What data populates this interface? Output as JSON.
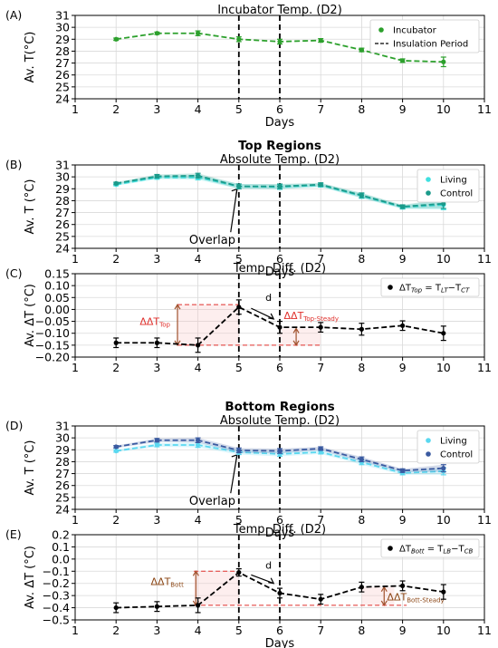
{
  "chart_data": [
    {
      "type": "line",
      "panel_label": "(A)",
      "title": "Incubator Temp. (D2)",
      "ylabel": "Av. T(°C)",
      "xlabel": "Days",
      "xlim": [
        1,
        11
      ],
      "ylim": [
        24,
        31
      ],
      "xticks": [
        1,
        2,
        3,
        4,
        5,
        6,
        7,
        8,
        9,
        10,
        11
      ],
      "yticks": [
        24,
        25,
        26,
        27,
        28,
        29,
        30,
        31
      ],
      "grid": true,
      "legend_position": "top-right",
      "vlines": [
        5,
        6
      ],
      "vline_label": "Insulation Period",
      "x": [
        2,
        3,
        4,
        5,
        6,
        7,
        8,
        9,
        10
      ],
      "series": [
        {
          "name": "Incubator",
          "color": "#2ca02c",
          "values": [
            29.0,
            29.5,
            29.5,
            29.0,
            28.8,
            28.9,
            28.1,
            27.2,
            27.1
          ],
          "err": [
            0.1,
            0.1,
            0.2,
            0.2,
            0.2,
            0.15,
            0.15,
            0.15,
            0.4
          ]
        }
      ]
    },
    {
      "type": "line",
      "panel_label": "(B)",
      "supertitle": "Top Regions",
      "title": "Absolute Temp. (D2)",
      "ylabel": "Av. T (°C)",
      "xlabel": "Days",
      "xlim": [
        1,
        11
      ],
      "ylim": [
        24,
        31
      ],
      "xticks": [
        1,
        2,
        3,
        4,
        5,
        6,
        7,
        8,
        9,
        10,
        11
      ],
      "yticks": [
        24,
        25,
        26,
        27,
        28,
        29,
        30,
        31
      ],
      "grid": true,
      "legend_position": "top-right",
      "vlines": [
        5,
        6
      ],
      "annotation": "Overlap",
      "x": [
        2,
        3,
        4,
        5,
        6,
        7,
        8,
        9,
        10
      ],
      "series": [
        {
          "name": "Living",
          "color": "#40e0e0",
          "values": [
            29.35,
            29.95,
            29.95,
            29.2,
            29.15,
            29.3,
            28.4,
            27.45,
            27.65
          ],
          "err": [
            0.1,
            0.15,
            0.2,
            0.2,
            0.2,
            0.15,
            0.2,
            0.15,
            0.4
          ]
        },
        {
          "name": "Control",
          "color": "#1a9a8a",
          "values": [
            29.45,
            30.05,
            30.1,
            29.2,
            29.2,
            29.35,
            28.45,
            27.5,
            27.75
          ],
          "err": [
            0.1,
            0.15,
            0.2,
            0.2,
            0.2,
            0.15,
            0.2,
            0.15,
            0.4
          ]
        }
      ]
    },
    {
      "type": "line",
      "panel_label": "(C)",
      "title": "Temp. Diff. (D2)",
      "ylabel": "Av. ΔT  (°C)",
      "xlabel": "",
      "xlim": [
        1,
        11
      ],
      "ylim": [
        -0.2,
        0.15
      ],
      "xticks": [
        1,
        2,
        3,
        4,
        5,
        6,
        7,
        8,
        9,
        10,
        11
      ],
      "yticks": [
        -0.2,
        -0.15,
        -0.1,
        -0.05,
        0.0,
        0.05,
        0.1,
        0.15
      ],
      "ytick_labels": [
        "−0.20",
        "−0.15",
        "−0.10",
        "−0.05",
        "0.00",
        "0.05",
        "0.10",
        "0.15"
      ],
      "grid": true,
      "legend_position": "top-right",
      "legend_text": "ΔT",
      "legend_sub": "Top",
      "legend_eq": " = T",
      "legend_sub2": "LT",
      "legend_minus": "−T",
      "legend_sub3": "CT",
      "vlines": [
        5,
        6
      ],
      "ann_d": "d",
      "ann_left": "ΔΔT",
      "ann_left_sub": "Top",
      "ann_right": "ΔΔT",
      "ann_right_sub": "Top-Steady",
      "x": [
        2,
        3,
        4,
        5,
        6,
        7,
        8,
        9,
        10
      ],
      "series": [
        {
          "name": "",
          "color": "#000000",
          "values": [
            -0.14,
            -0.14,
            -0.15,
            0.01,
            -0.075,
            -0.075,
            -0.083,
            -0.068,
            -0.1
          ],
          "err": [
            0.02,
            0.02,
            0.03,
            0.03,
            0.025,
            0.02,
            0.025,
            0.02,
            0.03
          ]
        }
      ]
    },
    {
      "type": "line",
      "panel_label": "(D)",
      "supertitle": "Bottom Regions",
      "title": "Absolute Temp. (D2)",
      "ylabel": "Av. T (°C)",
      "xlabel": "Days",
      "xlim": [
        1,
        11
      ],
      "ylim": [
        24,
        31
      ],
      "xticks": [
        1,
        2,
        3,
        4,
        5,
        6,
        7,
        8,
        9,
        10,
        11
      ],
      "yticks": [
        24,
        25,
        26,
        27,
        28,
        29,
        30,
        31
      ],
      "grid": true,
      "legend_position": "top-right",
      "vlines": [
        5,
        6
      ],
      "annotation": "Overlap",
      "x": [
        2,
        3,
        4,
        5,
        6,
        7,
        8,
        9,
        10
      ],
      "series": [
        {
          "name": "Living",
          "color": "#5ad8f0",
          "values": [
            28.9,
            29.4,
            29.4,
            28.8,
            28.65,
            28.8,
            27.95,
            27.05,
            27.2
          ],
          "err": [
            0.1,
            0.15,
            0.2,
            0.2,
            0.2,
            0.15,
            0.2,
            0.15,
            0.3
          ]
        },
        {
          "name": "Control",
          "color": "#3a5aa0",
          "values": [
            29.25,
            29.8,
            29.8,
            28.95,
            28.9,
            29.1,
            28.2,
            27.25,
            27.45
          ],
          "err": [
            0.1,
            0.15,
            0.2,
            0.2,
            0.2,
            0.15,
            0.2,
            0.15,
            0.3
          ]
        }
      ]
    },
    {
      "type": "line",
      "panel_label": "(E)",
      "title": "Temp. Diff. (D2)",
      "ylabel": "Av. ΔT  (°C)",
      "xlabel": "Days",
      "xlim": [
        1,
        11
      ],
      "ylim": [
        -0.5,
        0.2
      ],
      "xticks": [
        1,
        2,
        3,
        4,
        5,
        6,
        7,
        8,
        9,
        10,
        11
      ],
      "yticks": [
        -0.5,
        -0.4,
        -0.3,
        -0.2,
        -0.1,
        0.0,
        0.1,
        0.2
      ],
      "ytick_labels": [
        "−0.5",
        "−0.4",
        "−0.3",
        "−0.2",
        "−0.1",
        "0.0",
        "0.1",
        "0.2"
      ],
      "grid": true,
      "legend_position": "top-right",
      "legend_text": "ΔT",
      "legend_sub": "Bott",
      "legend_eq": " = T",
      "legend_sub2": "LB",
      "legend_minus": "−T",
      "legend_sub3": "CB",
      "vlines": [
        5,
        6
      ],
      "ann_d": "d",
      "ann_left": "ΔΔT",
      "ann_left_sub": "Bott",
      "ann_right": "ΔΔT",
      "ann_right_sub": "Bott-Steady",
      "x": [
        2,
        3,
        4,
        5,
        6,
        7,
        8,
        9,
        10
      ],
      "series": [
        {
          "name": "",
          "color": "#000000",
          "values": [
            -0.4,
            -0.39,
            -0.38,
            -0.11,
            -0.28,
            -0.33,
            -0.23,
            -0.22,
            -0.27
          ],
          "err": [
            0.04,
            0.04,
            0.06,
            0.03,
            0.04,
            0.04,
            0.04,
            0.04,
            0.06
          ]
        }
      ]
    }
  ]
}
